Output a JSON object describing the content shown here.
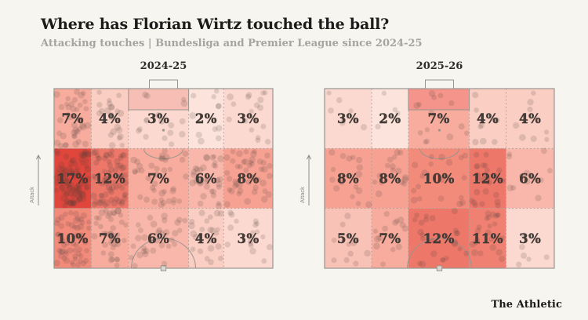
{
  "header": {
    "title": "Where has Florian Wirtz touched the ball?",
    "subtitle": "Attacking touches | Bundesliga and Premier League since 2024-25"
  },
  "footer": {
    "brand": "The Athletic"
  },
  "chart_data": {
    "type": "heatmap",
    "title": "Where has Florian Wirtz touched the ball?",
    "subtitle": "Attacking touches | Bundesliga and Premier League since 2024-25",
    "unit": "%",
    "direction_label": "Attack",
    "layout_note": "Two attacking-half pitch maps, goal at top, halfway line at bottom, 5 columns x 3 rows of zones",
    "columns": [
      "left-wing",
      "left-halfspace",
      "central",
      "right-halfspace",
      "right-wing"
    ],
    "rows": [
      "near-goal-band",
      "middle-band",
      "near-halfway-band"
    ],
    "pitches": [
      {
        "season": "2024-25",
        "zone_percentages": [
          [
            7,
            4,
            3,
            2,
            3
          ],
          [
            17,
            12,
            7,
            6,
            8
          ],
          [
            10,
            7,
            6,
            4,
            3
          ]
        ],
        "box_fill": "#f6beb4",
        "dot_density": 5.5
      },
      {
        "season": "2025-26",
        "zone_percentages": [
          [
            3,
            2,
            7,
            4,
            4
          ],
          [
            8,
            8,
            10,
            12,
            6
          ],
          [
            5,
            7,
            12,
            11,
            3
          ]
        ],
        "box_fill": "#f4948a",
        "dot_density": 2.0
      }
    ],
    "colors": {
      "background": "#f6f5f0",
      "title": "#1d1c1a",
      "subtitle": "#a6a49e",
      "scale_low": "#fce4dc",
      "scale_mid": "#f4907f",
      "scale_high": "#e0463c",
      "scale_min_value": 2,
      "scale_mid_value": 9.5,
      "scale_max_value": 17,
      "pitch_line": "#999590",
      "grid_line": "#a39e98",
      "zone_label": "#463d39",
      "dot": "rgba(80,60,55,0.16)",
      "attack_label": "#8f8c86"
    }
  }
}
